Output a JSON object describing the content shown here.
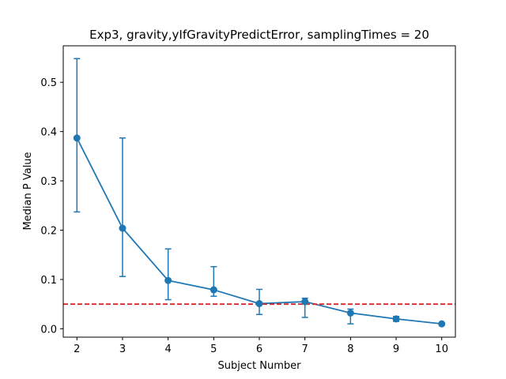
{
  "chart_data": {
    "type": "line",
    "title": "Exp3, gravity,yIfGravityPredictError, samplingTimes = 20",
    "xlabel": "Subject Number",
    "ylabel": "Median P Value",
    "xlim": [
      1.7,
      10.3
    ],
    "ylim": [
      -0.017,
      0.574
    ],
    "xticks": [
      2,
      3,
      4,
      5,
      6,
      7,
      8,
      9,
      10
    ],
    "yticks": [
      0.0,
      0.1,
      0.2,
      0.3,
      0.4,
      0.5
    ],
    "ytick_labels": [
      "0.0",
      "0.1",
      "0.2",
      "0.3",
      "0.4",
      "0.5"
    ],
    "grid": false,
    "series": [
      {
        "x": [
          2,
          3,
          4,
          5,
          6,
          7,
          8,
          9,
          10
        ],
        "y": [
          0.387,
          0.204,
          0.098,
          0.079,
          0.051,
          0.055,
          0.032,
          0.02,
          0.01
        ],
        "err_low": [
          0.237,
          0.106,
          0.059,
          0.066,
          0.029,
          0.023,
          0.01,
          0.015,
          0.008
        ],
        "err_high": [
          0.548,
          0.387,
          0.162,
          0.126,
          0.08,
          0.062,
          0.04,
          0.025,
          0.012
        ],
        "color": "#1f77b4",
        "marker": "circle"
      }
    ],
    "reference_line": {
      "y": 0.05,
      "style": "dashed",
      "color": "#d62728"
    }
  }
}
